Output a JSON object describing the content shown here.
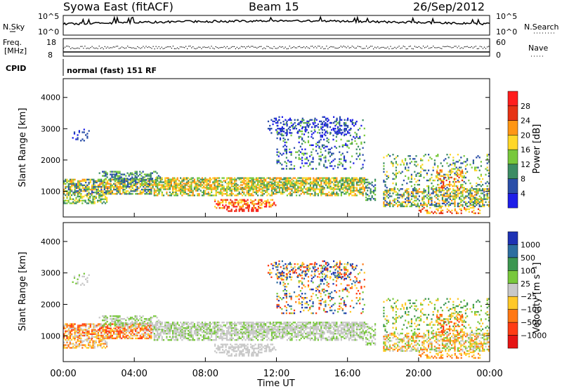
{
  "header": {
    "station": "Syowa East (fitACF)",
    "beam": "Beam 15",
    "date": "26/Sep/2012"
  },
  "nsky_panel": {
    "left_label": "N.Sky",
    "right_label": "N.Search",
    "left_ticks": [
      "10^5",
      "10^0"
    ],
    "right_ticks": [
      "10^5",
      "10^0"
    ]
  },
  "freq_panel": {
    "left_label": "Freq.",
    "left_unit": "[MHz]",
    "right_label": "Nave",
    "left_ticks": [
      "18",
      "8"
    ],
    "right_ticks": [
      "60",
      "0"
    ]
  },
  "cpid": {
    "label": "CPID",
    "value": "normal (fast) 151 RF"
  },
  "chart_data": [
    {
      "type": "heatmap",
      "name": "power",
      "ylabel": "Slant Range [km]",
      "ylim": [
        180,
        4600
      ],
      "yticks": [
        "1000",
        "2000",
        "3000",
        "4000"
      ],
      "xlim_hours": [
        0,
        24
      ],
      "colorbar_label": "Power [dB]",
      "colorbar_ticks": [
        "4",
        "8",
        "12",
        "16",
        "20",
        "24",
        "28"
      ],
      "colors": [
        "#1e1ee8",
        "#2a4ea8",
        "#3c8c64",
        "#78c83c",
        "#ffd728",
        "#ff9614",
        "#e63214",
        "#ff1e1e"
      ]
    },
    {
      "type": "heatmap",
      "name": "velocity",
      "ylabel": "Slant Range [km]",
      "ylim": [
        180,
        4600
      ],
      "yticks": [
        "1000",
        "2000",
        "3000",
        "4000"
      ],
      "xlim_hours": [
        0,
        24
      ],
      "colorbar_label": "Velocity  [m s⁻¹]",
      "colorbar_ticks": [
        "1000",
        "500",
        "100",
        "25",
        "−25",
        "−100",
        "−500",
        "−1000"
      ],
      "colors": [
        "#1e32b4",
        "#2d6ea0",
        "#3c9650",
        "#78c83c",
        "#c8c8c8",
        "#ffc828",
        "#ff7814",
        "#ff3c14",
        "#e61414"
      ]
    }
  ],
  "xaxis": {
    "label": "Time UT",
    "ticks": [
      "00:00",
      "04:00",
      "08:00",
      "12:00",
      "16:00",
      "20:00",
      "00:00"
    ]
  }
}
